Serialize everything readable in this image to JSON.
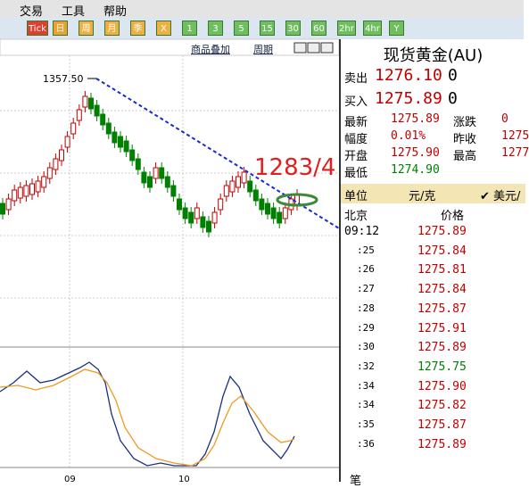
{
  "menu": [
    "交易",
    "工具",
    "帮助"
  ],
  "toolbar": [
    "Tick",
    "日",
    "周",
    "月",
    "季",
    "X",
    "1",
    "3",
    "5",
    "15",
    "30",
    "60",
    "2hr",
    "4hr",
    "Y"
  ],
  "chart_toolbar": [
    "商品叠加",
    "周期"
  ],
  "chart": {
    "peak_label": "1357.50",
    "target_label": "1283/4",
    "x_labels": [
      "09",
      "10"
    ]
  },
  "quote": {
    "title": "现货黄金(AU)",
    "sell": {
      "label": "卖出",
      "price": "1276.10",
      "volume": "0"
    },
    "buy": {
      "label": "买入",
      "price": "1275.89",
      "volume": "0"
    },
    "stats": [
      [
        "最新",
        "1275.89",
        "涨跌",
        "0"
      ],
      [
        "幅度",
        "0.01%",
        "昨收",
        "1275"
      ],
      [
        "开盘",
        "1275.90",
        "最高",
        "1277"
      ],
      [
        "最低",
        "1274.90",
        "",
        ""
      ]
    ],
    "unit": {
      "label": "单位",
      "value": "元/克",
      "option": "美元/"
    },
    "ticks_header": [
      "北京",
      "价格"
    ],
    "ticks": [
      {
        "time": "09:12",
        "price": "1275.89",
        "color": "#c00000"
      },
      {
        "time": ":25",
        "price": "1275.84",
        "color": "#c00000"
      },
      {
        "time": ":26",
        "price": "1275.81",
        "color": "#c00000"
      },
      {
        "time": ":27",
        "price": "1275.84",
        "color": "#c00000"
      },
      {
        "time": ":28",
        "price": "1275.87",
        "color": "#c00000"
      },
      {
        "time": ":29",
        "price": "1275.91",
        "color": "#c00000"
      },
      {
        "time": ":30",
        "price": "1275.89",
        "color": "#c00000"
      },
      {
        "time": ":32",
        "price": "1275.75",
        "color": "#008000"
      },
      {
        "time": ":34",
        "price": "1275.90",
        "color": "#c00000"
      },
      {
        "time": ":34",
        "price": "1275.82",
        "color": "#c00000"
      },
      {
        "time": ":35",
        "price": "1275.87",
        "color": "#c00000"
      },
      {
        "time": ":36",
        "price": "1275.89",
        "color": "#c00000"
      }
    ]
  },
  "footer": "笔"
}
